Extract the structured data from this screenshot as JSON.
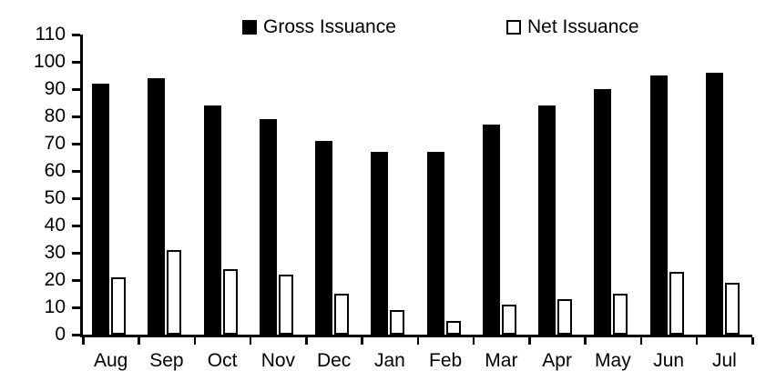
{
  "chart_data": {
    "type": "bar",
    "title": "",
    "xlabel": "",
    "ylabel": "",
    "categories": [
      "Aug",
      "Sep",
      "Oct",
      "Nov",
      "Dec",
      "Jan",
      "Feb",
      "Mar",
      "Apr",
      "May",
      "Jun",
      "Jul"
    ],
    "series": [
      {
        "name": "Gross Issuance",
        "color": "#000000",
        "values": [
          92,
          94,
          84,
          79,
          71,
          67,
          67,
          77,
          84,
          90,
          95,
          96
        ]
      },
      {
        "name": "Net Issuance",
        "color": "#ffffff",
        "border_color": "#000000",
        "values": [
          21,
          31,
          24,
          22,
          15,
          9,
          5,
          11,
          13,
          15,
          23,
          19
        ]
      }
    ],
    "ylim": [
      0,
      110
    ],
    "yticks": [
      0,
      10,
      20,
      30,
      40,
      50,
      60,
      70,
      80,
      90,
      100,
      110
    ],
    "grid": false,
    "legend_position": "top",
    "axis_color": "#000000"
  },
  "legend": {
    "gross_label": "Gross Issuance",
    "net_label": "Net Issuance"
  }
}
